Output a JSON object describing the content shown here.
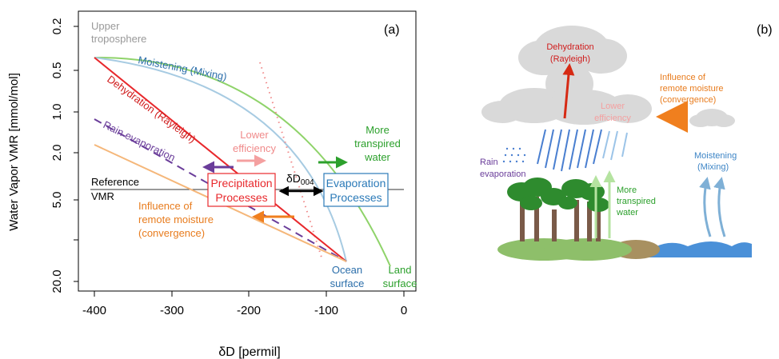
{
  "panel_a": {
    "label": "(a)",
    "xlabel": "δD [permil]",
    "ylabel": "Water Vapor VMR [mmol/mol]",
    "upper_troposphere": [
      "Upper",
      "troposphere"
    ],
    "reference_vmr": [
      "Reference",
      "VMR"
    ],
    "moistening": "Moistening (Mixing)",
    "dehydration": "Dehydration (Rayleigh)",
    "rain_evaporation": "Rain evaporation",
    "more_transpired": [
      "More",
      "transpired",
      "water"
    ],
    "lower_efficiency": [
      "Lower",
      "efficiency"
    ],
    "remote_moisture": [
      "Influence of",
      "remote moisture",
      "(convergence)"
    ],
    "precip_box": [
      "Precipitation",
      "Processes"
    ],
    "evap_box": [
      "Evaporation",
      "Processes"
    ],
    "delta_label": "δD",
    "delta_sub": "004",
    "ocean_surface": [
      "Ocean",
      "surface"
    ],
    "land_surface": [
      "Land",
      "surface"
    ]
  },
  "panel_b": {
    "label": "(b)",
    "dehydration": [
      "Dehydration",
      "(Rayleigh)"
    ],
    "remote_moisture": [
      "Influence of",
      "remote moisture",
      "(convergence)"
    ],
    "lower_efficiency": [
      "Lower",
      "efficiency"
    ],
    "rain_evaporation": [
      "Rain",
      "evaporation"
    ],
    "more_transpired": [
      "More",
      "transpired",
      "water"
    ],
    "moistening": [
      "Moistening",
      "(Mixing)"
    ]
  },
  "colors": {
    "moistening": "#7fb0d6",
    "moistening_text": "#3d85c6",
    "dehydration": "#e8282c",
    "rain_evap": "#6a3d9a",
    "remote": "#f0a050",
    "remote_text": "#e87c1e",
    "land": "#8fd36a",
    "land_text": "#2ca02c",
    "lower_eff": "#f4a0a0",
    "ocean": "#4a90c8",
    "cloud": "#d9d9d9"
  },
  "chart_data": {
    "type": "line",
    "x_ticks": [
      -400,
      -300,
      -200,
      -100,
      0
    ],
    "y_ticks": [
      "0.2",
      "0.5",
      "1.0",
      "2.0",
      "5.0",
      "20.0"
    ],
    "y_scale": "log",
    "grid": false,
    "series": [
      {
        "name": "Moistening (Mixing)",
        "style": "solid",
        "x": [
          -395,
          -300,
          -200,
          -150,
          -100,
          -75
        ],
        "y": [
          0.6,
          0.85,
          1.6,
          2.6,
          5.5,
          14.0
        ]
      },
      {
        "name": "Dehydration (Rayleigh)",
        "style": "solid",
        "x": [
          -395,
          -75
        ],
        "y": [
          0.6,
          14.0
        ]
      },
      {
        "name": "Rain evaporation",
        "style": "dashed",
        "x": [
          -395,
          -75
        ],
        "y": [
          1.15,
          14.0
        ]
      },
      {
        "name": "Influence of remote moisture (convergence)",
        "style": "solid",
        "x": [
          -395,
          -75
        ],
        "y": [
          1.7,
          14.0
        ]
      },
      {
        "name": "More transpired water",
        "style": "solid",
        "x": [
          -395,
          -200,
          -100,
          -45,
          -15
        ],
        "y": [
          0.6,
          0.8,
          1.4,
          3.5,
          14.0
        ]
      },
      {
        "name": "Lower efficiency",
        "style": "dotted",
        "x": [
          -180,
          -100
        ],
        "y": [
          0.42,
          14.0
        ]
      }
    ],
    "reference_vmr_y": 4.0
  }
}
